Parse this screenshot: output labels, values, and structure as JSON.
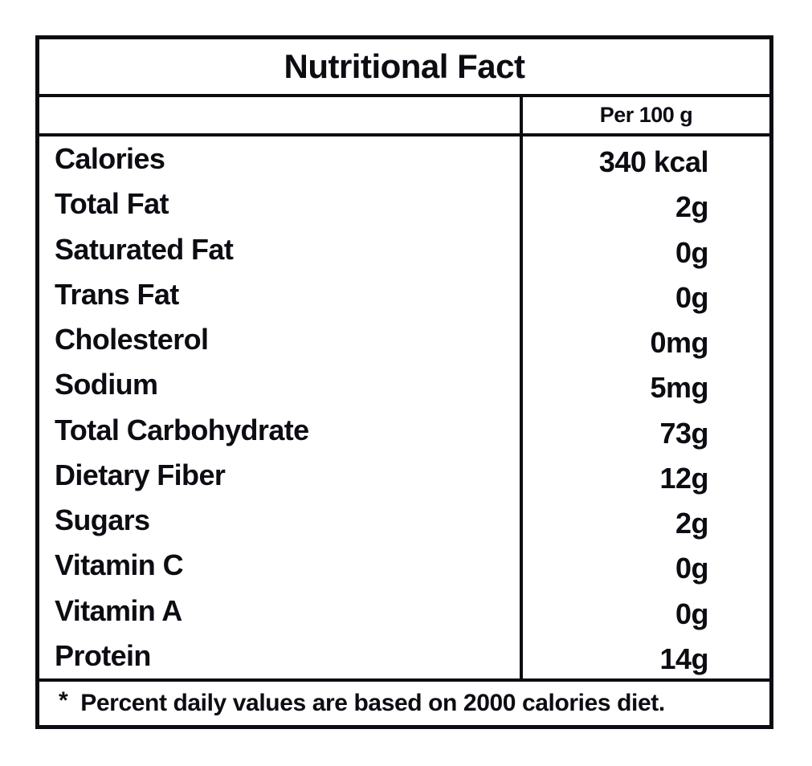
{
  "page": {
    "background": "#ffffff"
  },
  "table": {
    "title": "Nutritional Fact",
    "header": {
      "amount_column": "Per 100 g"
    },
    "rows": [
      {
        "label": "Calories",
        "value": "340 kcal"
      },
      {
        "label": "Total Fat",
        "value": "2g"
      },
      {
        "label": "Saturated Fat",
        "value": "0g"
      },
      {
        "label": "Trans Fat",
        "value": "0g"
      },
      {
        "label": "Cholesterol",
        "value": "0mg"
      },
      {
        "label": "Sodium",
        "value": "5mg"
      },
      {
        "label": "Total Carbohydrate",
        "value": "73g"
      },
      {
        "label": "Dietary Fiber",
        "value": "12g"
      },
      {
        "label": "Sugars",
        "value": "2g"
      },
      {
        "label": "Vitamin C",
        "value": "0g"
      },
      {
        "label": "Vitamin A",
        "value": "0g"
      },
      {
        "label": "Protein",
        "value": "14g"
      }
    ],
    "footnote": {
      "marker": "*",
      "text": "Percent daily values are based on 2000 calories diet."
    },
    "colors": {
      "ink": "#0c0c12",
      "background": "#ffffff"
    }
  }
}
